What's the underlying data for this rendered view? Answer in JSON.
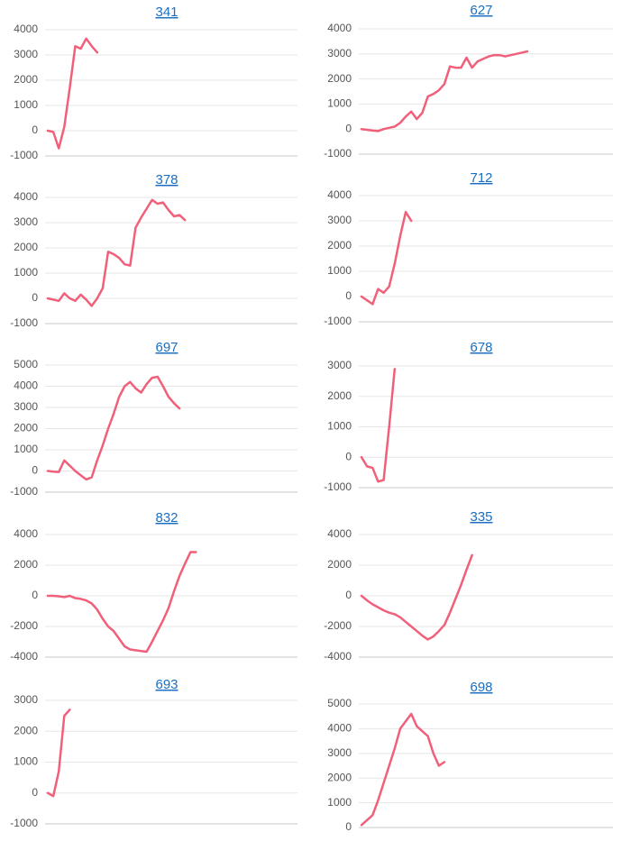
{
  "chart_data": [
    {
      "type": "line",
      "title": "341",
      "ylim": [
        -1000,
        4000
      ],
      "yticks": [
        -1000,
        0,
        1000,
        2000,
        3000,
        4000
      ],
      "grid": true,
      "categories": [
        null,
        null,
        null,
        null,
        null,
        null,
        null,
        null,
        null,
        null,
        null,
        null,
        null,
        null,
        null,
        null,
        null,
        null,
        null,
        null,
        null,
        null,
        null,
        null,
        null,
        null,
        null,
        null,
        null,
        null,
        null,
        null,
        null,
        null,
        null,
        null,
        null,
        null,
        null,
        null,
        null,
        null,
        null,
        null,
        null,
        null
      ],
      "series": [
        {
          "name": null,
          "color": "#f0607a",
          "values": [
            0,
            -50,
            -700,
            150,
            1700,
            3350,
            3250,
            3650,
            3350,
            3100,
            null,
            null,
            null,
            null,
            null,
            null,
            null,
            null,
            null,
            null,
            null,
            null,
            null,
            null,
            null,
            null,
            null,
            null,
            null,
            null,
            null,
            null,
            null,
            null,
            null,
            null,
            null,
            null,
            null,
            null,
            null,
            null,
            null,
            null,
            null,
            null
          ]
        }
      ]
    },
    {
      "type": "line",
      "title": "627",
      "ylim": [
        -1000,
        4000
      ],
      "yticks": [
        -1000,
        0,
        1000,
        2000,
        3000,
        4000
      ],
      "grid": true,
      "categories": [
        null,
        null,
        null,
        null,
        null,
        null,
        null,
        null,
        null,
        null,
        null,
        null,
        null,
        null,
        null,
        null,
        null,
        null,
        null,
        null,
        null,
        null,
        null,
        null,
        null,
        null,
        null,
        null,
        null,
        null,
        null,
        null,
        null,
        null,
        null,
        null,
        null,
        null,
        null,
        null,
        null,
        null,
        null,
        null,
        null,
        null
      ],
      "series": [
        {
          "name": null,
          "color": "#f0607a",
          "values": [
            0,
            -30,
            -60,
            -80,
            0,
            50,
            100,
            250,
            500,
            700,
            400,
            650,
            1300,
            1400,
            1550,
            1800,
            2500,
            2450,
            2450,
            2850,
            2450,
            2700,
            2800,
            2900,
            2950,
            2950,
            2900,
            2950,
            3000,
            3050,
            3100,
            null,
            null,
            null,
            null,
            null,
            null,
            null,
            null,
            null,
            null,
            null,
            null,
            null,
            null,
            null
          ]
        }
      ]
    },
    {
      "type": "line",
      "title": "378",
      "ylim": [
        -1000,
        4000
      ],
      "yticks": [
        -1000,
        0,
        1000,
        2000,
        3000,
        4000
      ],
      "grid": true,
      "categories": [
        null,
        null,
        null,
        null,
        null,
        null,
        null,
        null,
        null,
        null,
        null,
        null,
        null,
        null,
        null,
        null,
        null,
        null,
        null,
        null,
        null,
        null,
        null,
        null,
        null,
        null,
        null,
        null,
        null,
        null,
        null,
        null,
        null,
        null,
        null,
        null,
        null,
        null,
        null,
        null,
        null,
        null,
        null,
        null,
        null,
        null
      ],
      "series": [
        {
          "name": null,
          "color": "#f0607a",
          "values": [
            0,
            -50,
            -100,
            200,
            0,
            -100,
            150,
            -50,
            -300,
            0,
            400,
            1850,
            1750,
            1600,
            1350,
            1300,
            2800,
            3200,
            3550,
            3900,
            3750,
            3800,
            3500,
            3250,
            3300,
            3100,
            null,
            null,
            null,
            null,
            null,
            null,
            null,
            null,
            null,
            null,
            null,
            null,
            null,
            null,
            null,
            null,
            null,
            null,
            null,
            null
          ]
        }
      ]
    },
    {
      "type": "line",
      "title": "712",
      "ylim": [
        -1000,
        4000
      ],
      "yticks": [
        -1000,
        0,
        1000,
        2000,
        3000,
        4000
      ],
      "grid": true,
      "categories": [
        null,
        null,
        null,
        null,
        null,
        null,
        null,
        null,
        null,
        null,
        null,
        null,
        null,
        null,
        null,
        null,
        null,
        null,
        null,
        null,
        null,
        null,
        null,
        null,
        null,
        null,
        null,
        null,
        null,
        null,
        null,
        null,
        null,
        null,
        null,
        null,
        null,
        null,
        null,
        null,
        null,
        null,
        null,
        null,
        null,
        null
      ],
      "series": [
        {
          "name": null,
          "color": "#f0607a",
          "values": [
            0,
            -150,
            -300,
            300,
            150,
            400,
            1300,
            2400,
            3350,
            3000,
            null,
            null,
            null,
            null,
            null,
            null,
            null,
            null,
            null,
            null,
            null,
            null,
            null,
            null,
            null,
            null,
            null,
            null,
            null,
            null,
            null,
            null,
            null,
            null,
            null,
            null,
            null,
            null,
            null,
            null,
            null,
            null,
            null,
            null,
            null,
            null
          ]
        }
      ]
    },
    {
      "type": "line",
      "title": "697",
      "ylim": [
        -1000,
        5000
      ],
      "yticks": [
        -1000,
        0,
        1000,
        2000,
        3000,
        4000,
        5000
      ],
      "grid": true,
      "categories": [
        null,
        null,
        null,
        null,
        null,
        null,
        null,
        null,
        null,
        null,
        null,
        null,
        null,
        null,
        null,
        null,
        null,
        null,
        null,
        null,
        null,
        null,
        null,
        null,
        null,
        null,
        null,
        null,
        null,
        null,
        null,
        null,
        null,
        null,
        null,
        null,
        null,
        null,
        null,
        null,
        null,
        null,
        null,
        null,
        null,
        null
      ],
      "series": [
        {
          "name": null,
          "color": "#f0607a",
          "values": [
            0,
            -30,
            -50,
            500,
            250,
            0,
            -200,
            -400,
            -300,
            500,
            1200,
            2000,
            2700,
            3500,
            4000,
            4200,
            3900,
            3700,
            4100,
            4400,
            4450,
            4000,
            3500,
            3200,
            2950,
            null,
            null,
            null,
            null,
            null,
            null,
            null,
            null,
            null,
            null,
            null,
            null,
            null,
            null,
            null,
            null,
            null,
            null,
            null,
            null,
            null
          ]
        }
      ]
    },
    {
      "type": "line",
      "title": "678",
      "ylim": [
        -1000,
        3000
      ],
      "yticks": [
        -1000,
        0,
        1000,
        2000,
        3000
      ],
      "grid": true,
      "categories": [
        null,
        null,
        null,
        null,
        null,
        null,
        null,
        null,
        null,
        null,
        null,
        null,
        null,
        null,
        null,
        null,
        null,
        null,
        null,
        null,
        null,
        null,
        null,
        null,
        null,
        null,
        null,
        null,
        null,
        null,
        null,
        null,
        null,
        null,
        null,
        null,
        null,
        null,
        null,
        null,
        null,
        null,
        null,
        null,
        null,
        null
      ],
      "series": [
        {
          "name": null,
          "color": "#f0607a",
          "values": [
            0,
            -300,
            -350,
            -800,
            -750,
            1000,
            2900,
            null,
            null,
            null,
            null,
            null,
            null,
            null,
            null,
            null,
            null,
            null,
            null,
            null,
            null,
            null,
            null,
            null,
            null,
            null,
            null,
            null,
            null,
            null,
            null,
            null,
            null,
            null,
            null,
            null,
            null,
            null,
            null,
            null,
            null,
            null,
            null,
            null,
            null,
            null
          ]
        }
      ]
    },
    {
      "type": "line",
      "title": "832",
      "ylim": [
        -4000,
        4000
      ],
      "yticks": [
        -4000,
        -2000,
        0,
        2000,
        4000
      ],
      "grid": true,
      "categories": [
        null,
        null,
        null,
        null,
        null,
        null,
        null,
        null,
        null,
        null,
        null,
        null,
        null,
        null,
        null,
        null,
        null,
        null,
        null,
        null,
        null,
        null,
        null,
        null,
        null,
        null,
        null,
        null,
        null,
        null,
        null,
        null,
        null,
        null,
        null,
        null,
        null,
        null,
        null,
        null,
        null,
        null,
        null,
        null,
        null,
        null
      ],
      "series": [
        {
          "name": null,
          "color": "#f0607a",
          "values": [
            0,
            0,
            -30,
            -80,
            0,
            -150,
            -200,
            -300,
            -500,
            -900,
            -1500,
            -2000,
            -2300,
            -2800,
            -3300,
            -3500,
            -3550,
            -3600,
            -3650,
            -3000,
            -2300,
            -1600,
            -800,
            300,
            1300,
            2100,
            2850,
            2850,
            null,
            null,
            null,
            null,
            null,
            null,
            null,
            null,
            null,
            null,
            null,
            null,
            null,
            null,
            null,
            null,
            null,
            null
          ]
        }
      ]
    },
    {
      "type": "line",
      "title": "335",
      "ylim": [
        -4000,
        4000
      ],
      "yticks": [
        -4000,
        -2000,
        0,
        2000,
        4000
      ],
      "grid": true,
      "categories": [
        null,
        null,
        null,
        null,
        null,
        null,
        null,
        null,
        null,
        null,
        null,
        null,
        null,
        null,
        null,
        null,
        null,
        null,
        null,
        null,
        null,
        null,
        null,
        null,
        null,
        null,
        null,
        null,
        null,
        null,
        null,
        null,
        null,
        null,
        null,
        null,
        null,
        null,
        null,
        null,
        null,
        null,
        null,
        null,
        null,
        null
      ],
      "series": [
        {
          "name": null,
          "color": "#f0607a",
          "values": [
            0,
            -300,
            -550,
            -750,
            -950,
            -1100,
            -1200,
            -1400,
            -1700,
            -2000,
            -2300,
            -2600,
            -2850,
            -2650,
            -2300,
            -1900,
            -1100,
            -200,
            700,
            1700,
            2650,
            null,
            null,
            null,
            null,
            null,
            null,
            null,
            null,
            null,
            null,
            null,
            null,
            null,
            null,
            null,
            null,
            null,
            null,
            null,
            null,
            null,
            null,
            null,
            null,
            null
          ]
        }
      ]
    },
    {
      "type": "line",
      "title": "693",
      "ylim": [
        -1000,
        3000
      ],
      "yticks": [
        -1000,
        0,
        1000,
        2000,
        3000
      ],
      "grid": true,
      "categories": [
        null,
        null,
        null,
        null,
        null,
        null,
        null,
        null,
        null,
        null,
        null,
        null,
        null,
        null,
        null,
        null,
        null,
        null,
        null,
        null,
        null,
        null,
        null,
        null,
        null,
        null,
        null,
        null,
        null,
        null,
        null,
        null,
        null,
        null,
        null,
        null,
        null,
        null,
        null,
        null,
        null,
        null,
        null,
        null,
        null,
        null
      ],
      "series": [
        {
          "name": null,
          "color": "#f0607a",
          "values": [
            0,
            -100,
            700,
            2500,
            2700,
            null,
            null,
            null,
            null,
            null,
            null,
            null,
            null,
            null,
            null,
            null,
            null,
            null,
            null,
            null,
            null,
            null,
            null,
            null,
            null,
            null,
            null,
            null,
            null,
            null,
            null,
            null,
            null,
            null,
            null,
            null,
            null,
            null,
            null,
            null,
            null,
            null,
            null,
            null,
            null,
            null
          ]
        }
      ]
    },
    {
      "type": "line",
      "title": "698",
      "ylim": [
        0,
        5000
      ],
      "yticks": [
        0,
        1000,
        2000,
        3000,
        4000,
        5000
      ],
      "grid": true,
      "categories": [
        null,
        null,
        null,
        null,
        null,
        null,
        null,
        null,
        null,
        null,
        null,
        null,
        null,
        null,
        null,
        null,
        null,
        null,
        null,
        null,
        null,
        null,
        null,
        null,
        null,
        null,
        null,
        null,
        null,
        null,
        null,
        null,
        null,
        null,
        null,
        null,
        null,
        null,
        null,
        null,
        null,
        null,
        null,
        null,
        null,
        null
      ],
      "series": [
        {
          "name": null,
          "color": "#f0607a",
          "values": [
            100,
            300,
            500,
            1100,
            1800,
            2500,
            3200,
            4000,
            4300,
            4600,
            4100,
            3900,
            3700,
            3000,
            2500,
            2650,
            null,
            null,
            null,
            null,
            null,
            null,
            null,
            null,
            null,
            null,
            null,
            null,
            null,
            null,
            null,
            null,
            null,
            null,
            null,
            null,
            null,
            null,
            null,
            null,
            null,
            null,
            null,
            null,
            null,
            null
          ]
        }
      ]
    }
  ]
}
